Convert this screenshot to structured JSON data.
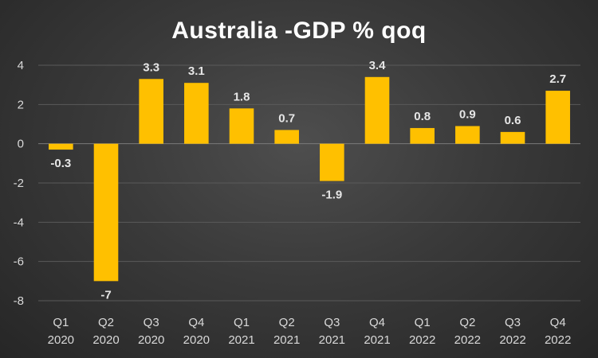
{
  "chart_data": {
    "type": "bar",
    "title": "Australia -GDP % qoq",
    "xlabel": "",
    "ylabel": "",
    "categories": [
      [
        "Q1",
        "2020"
      ],
      [
        "Q2",
        "2020"
      ],
      [
        "Q3",
        "2020"
      ],
      [
        "Q4",
        "2020"
      ],
      [
        "Q1",
        "2021"
      ],
      [
        "Q2",
        "2021"
      ],
      [
        "Q3",
        "2021"
      ],
      [
        "Q4",
        "2021"
      ],
      [
        "Q1",
        "2022"
      ],
      [
        "Q2",
        "2022"
      ],
      [
        "Q3",
        "2022"
      ],
      [
        "Q4",
        "2022"
      ]
    ],
    "values": [
      -0.3,
      -7,
      3.3,
      3.1,
      1.8,
      0.7,
      -1.9,
      3.4,
      0.8,
      0.9,
      0.6,
      2.7
    ],
    "data_labels": [
      "-0.3",
      "-7",
      "3.3",
      "3.1",
      "1.8",
      "0.7",
      "-1.9",
      "3.4",
      "0.8",
      "0.9",
      "0.6",
      "2.7"
    ],
    "ylim": [
      -8,
      4
    ],
    "yticks": [
      4,
      2,
      0,
      -2,
      -4,
      -6,
      -8
    ],
    "grid": true,
    "legend": "none",
    "bar_color": "#ffc000"
  }
}
